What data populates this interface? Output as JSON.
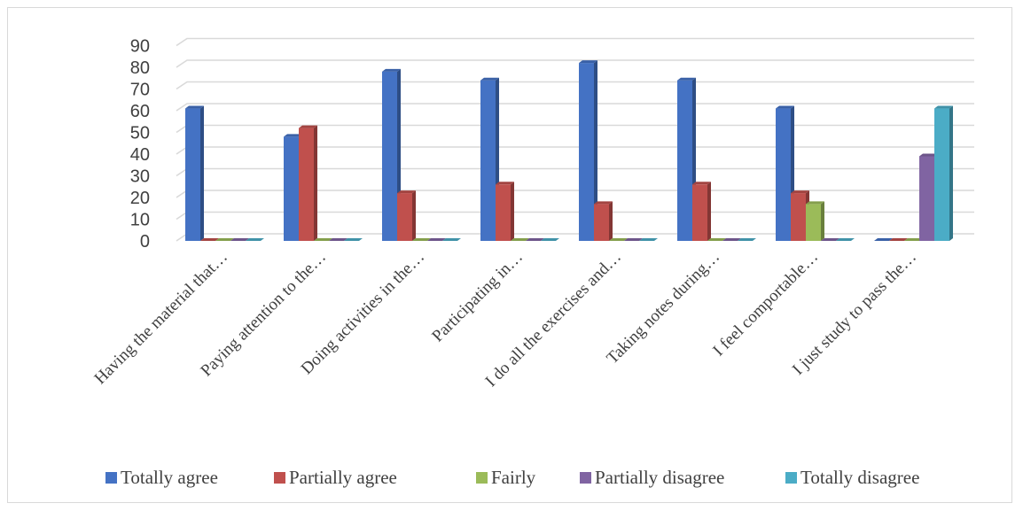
{
  "chart_data": {
    "type": "bar",
    "style": "3d-clustered-column",
    "categories": [
      "Having the material that…",
      "Paying attention to the…",
      "Doing activities in the…",
      "Participating in…",
      "I do all the exercises and…",
      "Taking notes during…",
      "I feel comportable…",
      "I just study to pass the…"
    ],
    "series": [
      {
        "name": "Totally agree",
        "color": "#4472c4",
        "values": [
          61,
          48,
          78,
          74,
          82,
          74,
          61,
          0
        ]
      },
      {
        "name": "Partially agree",
        "color": "#c0504d",
        "values": [
          0,
          52,
          22,
          26,
          17,
          26,
          22,
          0
        ]
      },
      {
        "name": "Fairly",
        "color": "#9bbb59",
        "values": [
          0,
          0,
          0,
          0,
          0,
          0,
          17,
          0
        ]
      },
      {
        "name": "Partially disagree",
        "color": "#8064a2",
        "values": [
          0,
          0,
          0,
          0,
          0,
          0,
          0,
          39
        ]
      },
      {
        "name": "Totally disagree",
        "color": "#4bacc6",
        "values": [
          0,
          0,
          0,
          0,
          0,
          0,
          0,
          61
        ]
      }
    ],
    "ylim": [
      0,
      90
    ],
    "yticks": [
      "0",
      "10",
      "20",
      "30",
      "40",
      "50",
      "60",
      "70",
      "80",
      "90"
    ],
    "grid": true,
    "legend_position": "bottom"
  }
}
